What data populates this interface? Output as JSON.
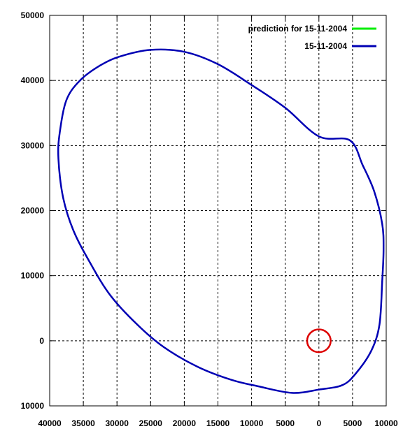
{
  "chart_data": {
    "type": "line",
    "title": "",
    "xlabel": "",
    "ylabel": "",
    "xlim": [
      40000,
      -10000
    ],
    "ylim": [
      -10000,
      50000
    ],
    "grid": true,
    "legend_position": "top-right",
    "x_tick_values": [
      40000,
      35000,
      30000,
      25000,
      20000,
      15000,
      10000,
      5000,
      0,
      -5000,
      -10000
    ],
    "x_tick_labels": [
      "40000",
      "35000",
      "30000",
      "25000",
      "20000",
      "15000",
      "10000",
      "5000",
      "0",
      "5000",
      "10000"
    ],
    "y_tick_values": [
      50000,
      40000,
      30000,
      20000,
      10000,
      0,
      -10000
    ],
    "y_tick_labels": [
      "50000",
      "40000",
      "30000",
      "20000",
      "10000",
      "0",
      "10000"
    ],
    "series": [
      {
        "name": "prediction for 15-11-2004",
        "color": "#00ee00",
        "points": []
      },
      {
        "name": "15-11-2004",
        "color": "#0000b4",
        "points": [
          [
            -4600,
            30800
          ],
          [
            -6500,
            27000
          ],
          [
            -8200,
            23000
          ],
          [
            -9400,
            18000
          ],
          [
            -9600,
            14000
          ],
          [
            -9400,
            9000
          ],
          [
            -9000,
            2500
          ],
          [
            -7800,
            -1500
          ],
          [
            -5500,
            -5000
          ],
          [
            -3500,
            -6800
          ],
          [
            0,
            -7500
          ],
          [
            4000,
            -8000
          ],
          [
            9000,
            -7000
          ],
          [
            13000,
            -6000
          ],
          [
            18000,
            -4000
          ],
          [
            23000,
            -1000
          ],
          [
            27000,
            2500
          ],
          [
            31000,
            7000
          ],
          [
            34000,
            12000
          ],
          [
            36500,
            17000
          ],
          [
            38000,
            22000
          ],
          [
            38700,
            28000
          ],
          [
            38500,
            32000
          ],
          [
            37500,
            37000
          ],
          [
            35500,
            40000
          ],
          [
            32500,
            42300
          ],
          [
            29500,
            43700
          ],
          [
            25000,
            44700
          ],
          [
            20000,
            44400
          ],
          [
            15000,
            42500
          ],
          [
            10000,
            39300
          ],
          [
            5000,
            35800
          ],
          [
            0,
            31400
          ],
          [
            -4600,
            30800
          ]
        ]
      }
    ]
  },
  "marker": {
    "name": "red-circle",
    "color": "#dd0000",
    "center": [
      0,
      0
    ],
    "radius": 1750
  }
}
